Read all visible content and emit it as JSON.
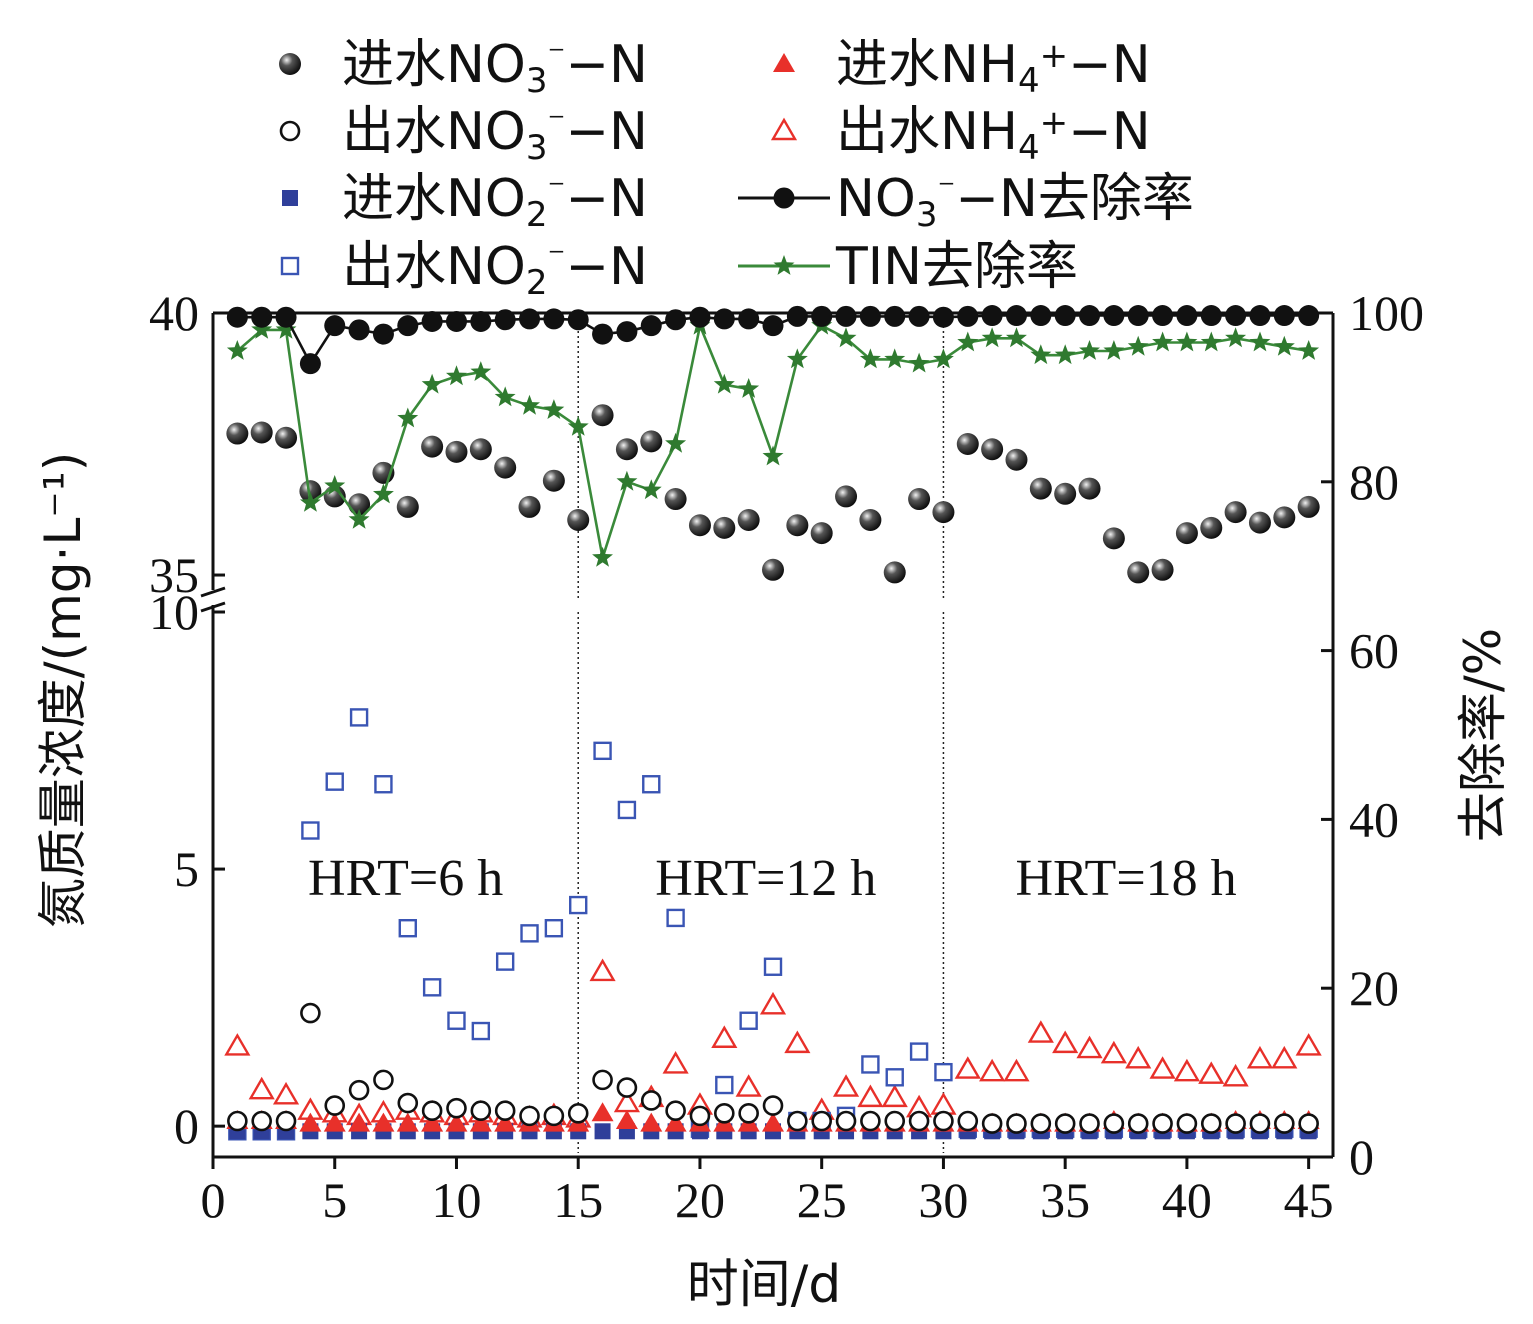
{
  "chart_data": {
    "type": "scatter",
    "xlabel": "时间/d",
    "ylabel_left": "氮质量浓度/(mg·L⁻¹)",
    "ylabel_right": "去除率/%",
    "x_ticks": [
      "0",
      "5",
      "10",
      "15",
      "20",
      "25",
      "30",
      "35",
      "40",
      "45"
    ],
    "y_left_ticks_lower": [
      "0",
      "5",
      "10"
    ],
    "y_left_ticks_upper": [
      "35",
      "40"
    ],
    "y_right_ticks": [
      "0",
      "20",
      "40",
      "60",
      "80",
      "100"
    ],
    "xlim": [
      0,
      46
    ],
    "ylim_left_lower": [
      -0.6,
      10
    ],
    "ylim_left_upper": [
      34.6,
      40
    ],
    "ylim_right": [
      0,
      100
    ],
    "axis_break": "10 to 35",
    "phases": [
      {
        "label": "HRT=6 h",
        "x_end": 15
      },
      {
        "label": "HRT=12 h",
        "x_end": 30
      },
      {
        "label": "HRT=18 h",
        "x_end": 45
      }
    ],
    "legend": [
      {
        "key": "inf_no3",
        "parts": [
          [
            "进水NO",
            ""
          ],
          [
            "3",
            "sub"
          ],
          [
            "⁻",
            "sup"
          ],
          [
            "−N",
            ""
          ]
        ]
      },
      {
        "key": "inf_nh4",
        "parts": [
          [
            "进水NH",
            ""
          ],
          [
            "4",
            "sub"
          ],
          [
            "+",
            "sup"
          ],
          [
            "−N",
            ""
          ]
        ]
      },
      {
        "key": "eff_no3",
        "parts": [
          [
            "出水NO",
            ""
          ],
          [
            "3",
            "sub"
          ],
          [
            "⁻",
            "sup"
          ],
          [
            "−N",
            ""
          ]
        ]
      },
      {
        "key": "eff_nh4",
        "parts": [
          [
            "出水NH",
            ""
          ],
          [
            "4",
            "sub"
          ],
          [
            "+",
            "sup"
          ],
          [
            "−N",
            ""
          ]
        ]
      },
      {
        "key": "inf_no2",
        "parts": [
          [
            "进水NO",
            ""
          ],
          [
            "2",
            "sub"
          ],
          [
            "⁻",
            "sup"
          ],
          [
            "−N",
            ""
          ]
        ]
      },
      {
        "key": "no3_removal",
        "parts": [
          [
            "NO",
            ""
          ],
          [
            "3",
            "sub"
          ],
          [
            "⁻",
            "sup"
          ],
          [
            "−N去除率",
            ""
          ]
        ]
      },
      {
        "key": "eff_no2",
        "parts": [
          [
            "出水NO",
            ""
          ],
          [
            "2",
            "sub"
          ],
          [
            "⁻",
            "sup"
          ],
          [
            "−N",
            ""
          ]
        ]
      },
      {
        "key": "tin_removal",
        "parts": [
          [
            "TIN去除率",
            ""
          ]
        ]
      }
    ],
    "colors": {
      "black": "#111111",
      "red": "#e8302a",
      "blue": "#2f3f9a",
      "blue_open": "#3a55b4",
      "green": "#3a8a3a",
      "green_star": "#2f7a2f"
    },
    "x": [
      1,
      2,
      3,
      4,
      5,
      6,
      7,
      8,
      9,
      10,
      11,
      12,
      13,
      14,
      15,
      16,
      17,
      18,
      19,
      20,
      21,
      22,
      23,
      24,
      25,
      26,
      27,
      28,
      29,
      30,
      31,
      32,
      33,
      34,
      35,
      36,
      37,
      38,
      39,
      40,
      41,
      42,
      43,
      44,
      45
    ],
    "series": [
      {
        "key": "inf_no3",
        "axis": "left",
        "marker": "ball",
        "values": [
          37.7,
          37.72,
          37.62,
          36.6,
          36.5,
          36.35,
          36.95,
          36.3,
          37.45,
          37.35,
          37.4,
          37.05,
          36.3,
          36.8,
          36.05,
          38.05,
          37.4,
          37.55,
          36.45,
          35.95,
          35.9,
          36.05,
          35.1,
          35.95,
          35.8,
          36.5,
          36.05,
          35.05,
          36.45,
          36.2,
          37.5,
          37.4,
          37.2,
          36.65,
          36.55,
          36.65,
          35.7,
          35.05,
          35.1,
          35.8,
          35.9,
          36.2,
          36.0,
          36.1,
          36.3
        ]
      },
      {
        "key": "eff_no3",
        "axis": "left",
        "marker": "open-circle",
        "values": [
          0.1,
          0.1,
          0.1,
          2.2,
          0.4,
          0.7,
          0.9,
          0.45,
          0.3,
          0.35,
          0.3,
          0.3,
          0.2,
          0.2,
          0.25,
          0.9,
          0.75,
          0.5,
          0.3,
          0.2,
          0.25,
          0.25,
          0.4,
          0.1,
          0.1,
          0.1,
          0.1,
          0.1,
          0.1,
          0.1,
          0.1,
          0.05,
          0.05,
          0.05,
          0.05,
          0.05,
          0.05,
          0.05,
          0.05,
          0.05,
          0.05,
          0.05,
          0.05,
          0.05,
          0.05
        ]
      },
      {
        "key": "inf_no2",
        "axis": "left",
        "marker": "filled-square",
        "values": [
          -0.1,
          -0.1,
          -0.1,
          -0.1,
          -0.1,
          -0.1,
          -0.1,
          -0.1,
          -0.1,
          -0.1,
          -0.1,
          -0.1,
          -0.1,
          -0.1,
          -0.1,
          -0.1,
          -0.1,
          -0.1,
          -0.1,
          -0.1,
          -0.1,
          -0.1,
          -0.1,
          -0.1,
          -0.1,
          -0.1,
          -0.1,
          -0.1,
          -0.1,
          -0.1,
          -0.1,
          -0.1,
          -0.1,
          -0.1,
          -0.1,
          -0.1,
          -0.1,
          -0.1,
          -0.1,
          -0.1,
          -0.1,
          -0.1,
          -0.1,
          -0.1,
          -0.1
        ]
      },
      {
        "key": "eff_no2",
        "axis": "left",
        "marker": "open-square",
        "values": [
          -0.1,
          -0.1,
          -0.1,
          5.75,
          6.7,
          7.95,
          6.65,
          3.85,
          2.7,
          2.05,
          1.85,
          3.2,
          3.75,
          3.85,
          4.3,
          7.3,
          6.15,
          6.65,
          4.05,
          -0.05,
          0.8,
          2.05,
          3.1,
          0.1,
          0.1,
          0.2,
          1.2,
          0.95,
          1.45,
          1.05,
          -0.05,
          -0.05,
          -0.05,
          -0.05,
          -0.05,
          -0.05,
          -0.05,
          -0.05,
          -0.05,
          -0.05,
          -0.05,
          -0.05,
          -0.05,
          -0.05,
          -0.05
        ]
      },
      {
        "key": "inf_nh4",
        "axis": "left",
        "marker": "filled-triangle",
        "values": [
          0.1,
          0.1,
          0.1,
          0.05,
          0.05,
          0.05,
          0.05,
          0.05,
          0.05,
          0.05,
          0.05,
          0.05,
          0.05,
          0.05,
          0.05,
          0.25,
          0.1,
          0.05,
          0.05,
          0.05,
          0.05,
          0.05,
          0.05,
          0.05,
          0.05,
          0.05,
          0.05,
          0.05,
          0.05,
          0.05,
          0.05,
          0.05,
          0.05,
          0.05,
          0.05,
          0.05,
          0.1,
          0.05,
          0.05,
          0.05,
          0.05,
          0.1,
          0.1,
          0.1,
          0.1
        ]
      },
      {
        "key": "eff_nh4",
        "axis": "left",
        "marker": "open-triangle",
        "values": [
          1.55,
          0.7,
          0.6,
          0.3,
          0.25,
          0.2,
          0.25,
          0.3,
          0.25,
          0.2,
          0.25,
          0.2,
          0.15,
          0.2,
          0.15,
          3.0,
          0.45,
          0.55,
          1.2,
          0.4,
          1.7,
          0.75,
          2.35,
          1.6,
          0.3,
          0.75,
          0.55,
          0.55,
          0.35,
          0.4,
          1.1,
          1.05,
          1.05,
          1.8,
          1.6,
          1.5,
          1.4,
          1.3,
          1.1,
          1.05,
          1.0,
          0.95,
          1.3,
          1.3,
          1.55
        ]
      },
      {
        "key": "no3_removal",
        "axis": "right",
        "marker": "line-ball",
        "values": [
          99.5,
          99.5,
          99.5,
          94.0,
          98.5,
          98.0,
          97.5,
          98.5,
          99.0,
          99.0,
          99.0,
          99.2,
          99.3,
          99.3,
          99.2,
          97.5,
          97.8,
          98.5,
          99.2,
          99.5,
          99.3,
          99.3,
          98.5,
          99.6,
          99.6,
          99.6,
          99.6,
          99.6,
          99.6,
          99.5,
          99.6,
          99.7,
          99.7,
          99.7,
          99.7,
          99.7,
          99.7,
          99.7,
          99.7,
          99.7,
          99.7,
          99.7,
          99.7,
          99.7,
          99.7
        ]
      },
      {
        "key": "tin_removal",
        "axis": "right",
        "marker": "line-star",
        "values": [
          95.5,
          98.0,
          98.0,
          77.5,
          79.5,
          75.5,
          78.5,
          87.5,
          91.5,
          92.5,
          93.0,
          90.0,
          89.0,
          88.5,
          86.5,
          71.0,
          80.0,
          79.0,
          84.5,
          98.5,
          91.5,
          91.0,
          83.0,
          94.5,
          98.5,
          97.0,
          94.5,
          94.5,
          94.0,
          94.5,
          96.5,
          97.0,
          97.0,
          95.0,
          95.0,
          95.5,
          95.5,
          96.0,
          96.5,
          96.5,
          96.5,
          97.0,
          96.5,
          96.0,
          95.5
        ]
      }
    ]
  }
}
